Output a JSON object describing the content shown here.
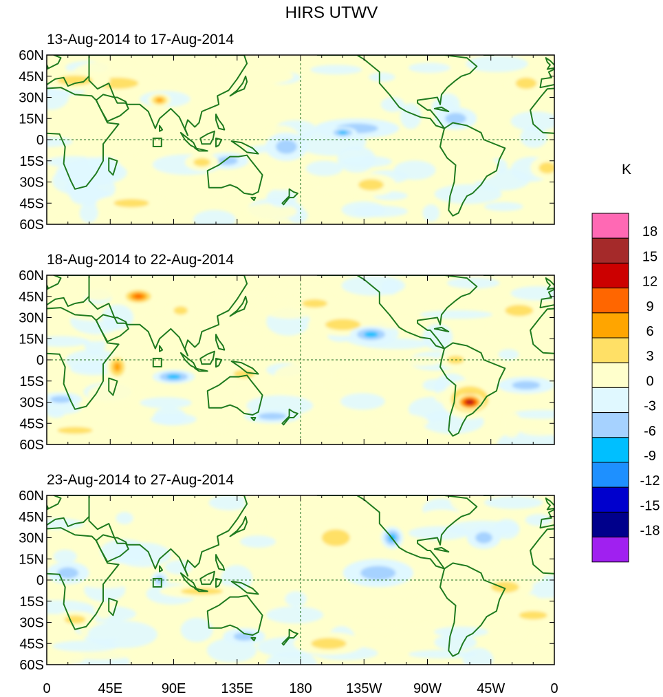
{
  "title": "HIRS UTWV",
  "chart_data": {
    "type": "heatmap",
    "variable": "Upper Tropospheric Water Vapor anomaly",
    "units_label": "K",
    "panels": [
      {
        "subtitle": "13-Aug-2014 to 17-Aug-2014",
        "anomalies": [
          {
            "lon": 50,
            "lat": 40,
            "rx": 30,
            "ry": 8,
            "v": 4
          },
          {
            "lon": 80,
            "lat": 28,
            "rx": 8,
            "ry": 5,
            "v": 8
          },
          {
            "lon": 20,
            "lat": 42,
            "rx": 25,
            "ry": 7,
            "v": 4
          },
          {
            "lon": 150,
            "lat": 45,
            "rx": 25,
            "ry": 6,
            "v": 3
          },
          {
            "lon": 220,
            "lat": 8,
            "rx": 30,
            "ry": 7,
            "v": -6
          },
          {
            "lon": 210,
            "lat": 5,
            "rx": 10,
            "ry": 4,
            "v": -9
          },
          {
            "lon": 128,
            "lat": -15,
            "rx": 15,
            "ry": 6,
            "v": -5
          },
          {
            "lon": 110,
            "lat": -16,
            "rx": 12,
            "ry": 6,
            "v": 4
          },
          {
            "lon": 230,
            "lat": -32,
            "rx": 18,
            "ry": 8,
            "v": 5
          },
          {
            "lon": 355,
            "lat": -20,
            "rx": 12,
            "ry": 8,
            "v": 4
          },
          {
            "lon": 300,
            "lat": -20,
            "rx": 20,
            "ry": 10,
            "v": 3
          },
          {
            "lon": 60,
            "lat": -45,
            "rx": 25,
            "ry": 6,
            "v": 4
          },
          {
            "lon": 290,
            "lat": 15,
            "rx": 15,
            "ry": 8,
            "v": -4
          },
          {
            "lon": 170,
            "lat": -5,
            "rx": 15,
            "ry": 10,
            "v": -4
          },
          {
            "lon": 340,
            "lat": 40,
            "rx": 15,
            "ry": 8,
            "v": 4
          }
        ]
      },
      {
        "subtitle": "18-Aug-2014 to 22-Aug-2014",
        "anomalies": [
          {
            "lon": 65,
            "lat": 45,
            "rx": 12,
            "ry": 6,
            "v": 10
          },
          {
            "lon": 95,
            "lat": 35,
            "rx": 10,
            "ry": 6,
            "v": 6
          },
          {
            "lon": 50,
            "lat": -5,
            "rx": 8,
            "ry": 10,
            "v": 8
          },
          {
            "lon": 90,
            "lat": -12,
            "rx": 15,
            "ry": 5,
            "v": -7
          },
          {
            "lon": 210,
            "lat": 25,
            "rx": 25,
            "ry": 8,
            "v": 5
          },
          {
            "lon": 230,
            "lat": 18,
            "rx": 15,
            "ry": 6,
            "v": -8
          },
          {
            "lon": 190,
            "lat": 40,
            "rx": 18,
            "ry": 6,
            "v": 4
          },
          {
            "lon": 300,
            "lat": -28,
            "rx": 20,
            "ry": 14,
            "v": 8
          },
          {
            "lon": 300,
            "lat": -30,
            "rx": 10,
            "ry": 6,
            "v": 16
          },
          {
            "lon": 290,
            "lat": 0,
            "rx": 12,
            "ry": 6,
            "v": 4
          },
          {
            "lon": 340,
            "lat": -18,
            "rx": 20,
            "ry": 6,
            "v": -6
          },
          {
            "lon": 10,
            "lat": -28,
            "rx": 15,
            "ry": 5,
            "v": -5
          },
          {
            "lon": 20,
            "lat": -50,
            "rx": 25,
            "ry": 5,
            "v": 4
          },
          {
            "lon": 335,
            "lat": 35,
            "rx": 20,
            "ry": 8,
            "v": 4
          },
          {
            "lon": 140,
            "lat": -10,
            "rx": 15,
            "ry": 6,
            "v": 4
          },
          {
            "lon": 160,
            "lat": -40,
            "rx": 20,
            "ry": 5,
            "v": -4
          }
        ]
      },
      {
        "subtitle": "23-Aug-2014 to 27-Aug-2014",
        "anomalies": [
          {
            "lon": 205,
            "lat": 30,
            "rx": 20,
            "ry": 12,
            "v": 5
          },
          {
            "lon": 235,
            "lat": 5,
            "rx": 25,
            "ry": 10,
            "v": -6
          },
          {
            "lon": 245,
            "lat": 30,
            "rx": 8,
            "ry": 8,
            "v": -8
          },
          {
            "lon": 110,
            "lat": -8,
            "rx": 30,
            "ry": 5,
            "v": 5
          },
          {
            "lon": 80,
            "lat": 0,
            "rx": 6,
            "ry": 6,
            "v": -6
          },
          {
            "lon": 345,
            "lat": -25,
            "rx": 20,
            "ry": 6,
            "v": 6
          },
          {
            "lon": 325,
            "lat": -5,
            "rx": 20,
            "ry": 8,
            "v": 4
          },
          {
            "lon": 200,
            "lat": -45,
            "rx": 25,
            "ry": 8,
            "v": 4
          },
          {
            "lon": 140,
            "lat": -40,
            "rx": 15,
            "ry": 6,
            "v": -4
          },
          {
            "lon": 20,
            "lat": -28,
            "rx": 15,
            "ry": 6,
            "v": 5
          },
          {
            "lon": 15,
            "lat": 5,
            "rx": 15,
            "ry": 8,
            "v": -4
          },
          {
            "lon": 310,
            "lat": 30,
            "rx": 12,
            "ry": 8,
            "v": -4
          },
          {
            "lon": 160,
            "lat": 55,
            "rx": 20,
            "ry": 5,
            "v": 3
          },
          {
            "lon": 280,
            "lat": 45,
            "rx": 15,
            "ry": 5,
            "v": 3
          }
        ]
      }
    ],
    "lon_range": [
      0,
      360
    ],
    "lat_range": [
      -60,
      60
    ],
    "x_tick_labels": [
      "0",
      "45E",
      "90E",
      "135E",
      "180",
      "135W",
      "90W",
      "45W",
      "0"
    ],
    "y_tick_labels": [
      "60N",
      "45N",
      "30N",
      "15N",
      "0",
      "15S",
      "30S",
      "45S",
      "60S"
    ],
    "colorbar": {
      "label": "K",
      "levels": [
        -18,
        -15,
        -12,
        -9,
        -6,
        -3,
        0,
        3,
        6,
        9,
        12,
        15,
        18
      ],
      "level_labels": [
        "18",
        "15",
        "12",
        "9",
        "6",
        "3",
        "0",
        "-3",
        "-6",
        "-9",
        "-12",
        "-15",
        "-18"
      ],
      "colors": [
        "#a020f0",
        "#00008b",
        "#0000cd",
        "#1e90ff",
        "#00bfff",
        "#a6d2ff",
        "#e0f8ff",
        "#ffffcc",
        "#ffe066",
        "#ffa500",
        "#ff6600",
        "#cc0000",
        "#a52a2a",
        "#ff69b4"
      ]
    },
    "grid": false,
    "zero_lines": "dashed equator and 180 meridian"
  }
}
